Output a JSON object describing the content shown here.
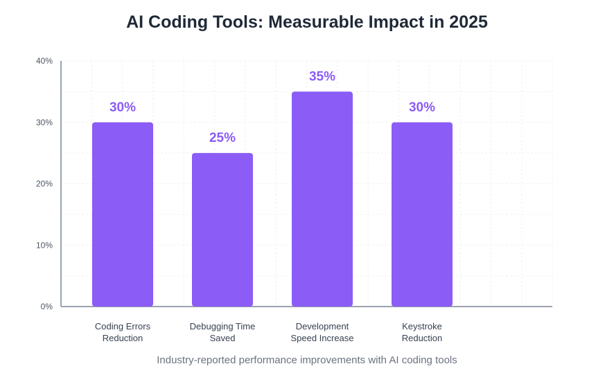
{
  "chart_data": {
    "type": "bar",
    "title": "AI Coding Tools: Measurable Impact in 2025",
    "subtitle": "Industry-reported performance improvements with AI coding tools",
    "categories": [
      [
        "Coding Errors",
        "Reduction"
      ],
      [
        "Debugging Time",
        "Saved"
      ],
      [
        "Development",
        "Speed Increase"
      ],
      [
        "Keystroke",
        "Reduction"
      ]
    ],
    "values": [
      30,
      25,
      35,
      30
    ],
    "data_labels": [
      "30%",
      "25%",
      "35%",
      "30%"
    ],
    "y_ticks": [
      0,
      10,
      20,
      30,
      40
    ],
    "y_tick_labels": [
      "0%",
      "10%",
      "20%",
      "30%",
      "40%"
    ],
    "ylim": [
      0,
      40
    ],
    "grid": true,
    "legend": "none",
    "bar_color": "#8b5cf6",
    "label_color": "#8b5cf6",
    "axis_color": "#9ca3af",
    "grid_color": "#f0f0f0"
  }
}
